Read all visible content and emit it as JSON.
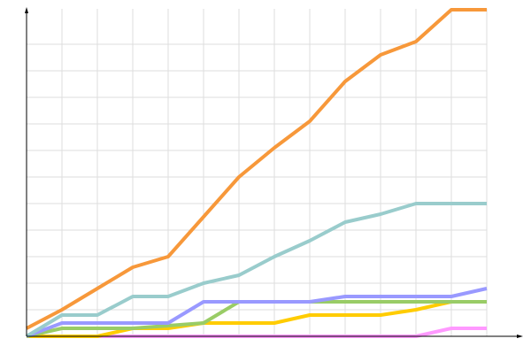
{
  "chart_data": {
    "type": "line",
    "categories": [
      null,
      null,
      null,
      null,
      null,
      null,
      null,
      null,
      null,
      null,
      null,
      null,
      null,
      null
    ],
    "series": [
      {
        "color": "#ff99ff",
        "values": [
          0,
          0,
          0,
          0,
          0,
          0,
          0,
          0,
          0,
          0,
          0,
          0,
          3,
          3
        ]
      },
      {
        "color": "#ffcc00",
        "values": [
          0,
          0,
          0,
          3,
          3,
          5,
          5,
          5,
          8,
          8,
          8,
          10,
          13,
          13
        ]
      },
      {
        "color": "#99cc66",
        "values": [
          0,
          3,
          3,
          3,
          4,
          5,
          13,
          13,
          13,
          13,
          13,
          13,
          13,
          13
        ]
      },
      {
        "color": "#9999ff",
        "values": [
          0,
          5,
          5,
          5,
          5,
          13,
          13,
          13,
          13,
          15,
          15,
          15,
          15,
          18
        ]
      },
      {
        "color": "#99cccc",
        "values": [
          0,
          8,
          8,
          15,
          15,
          20,
          23,
          30,
          36,
          43,
          46,
          50,
          50,
          50
        ]
      },
      {
        "color": "#f7983a",
        "values": [
          3,
          10,
          18,
          26,
          30,
          45,
          60,
          71,
          81,
          96,
          106,
          111,
          123,
          123
        ]
      }
    ],
    "ylim": [
      0,
      125
    ],
    "yticks": [
      10,
      20,
      30,
      40,
      50,
      60,
      70,
      80,
      90,
      100,
      110
    ],
    "grid": true
  }
}
